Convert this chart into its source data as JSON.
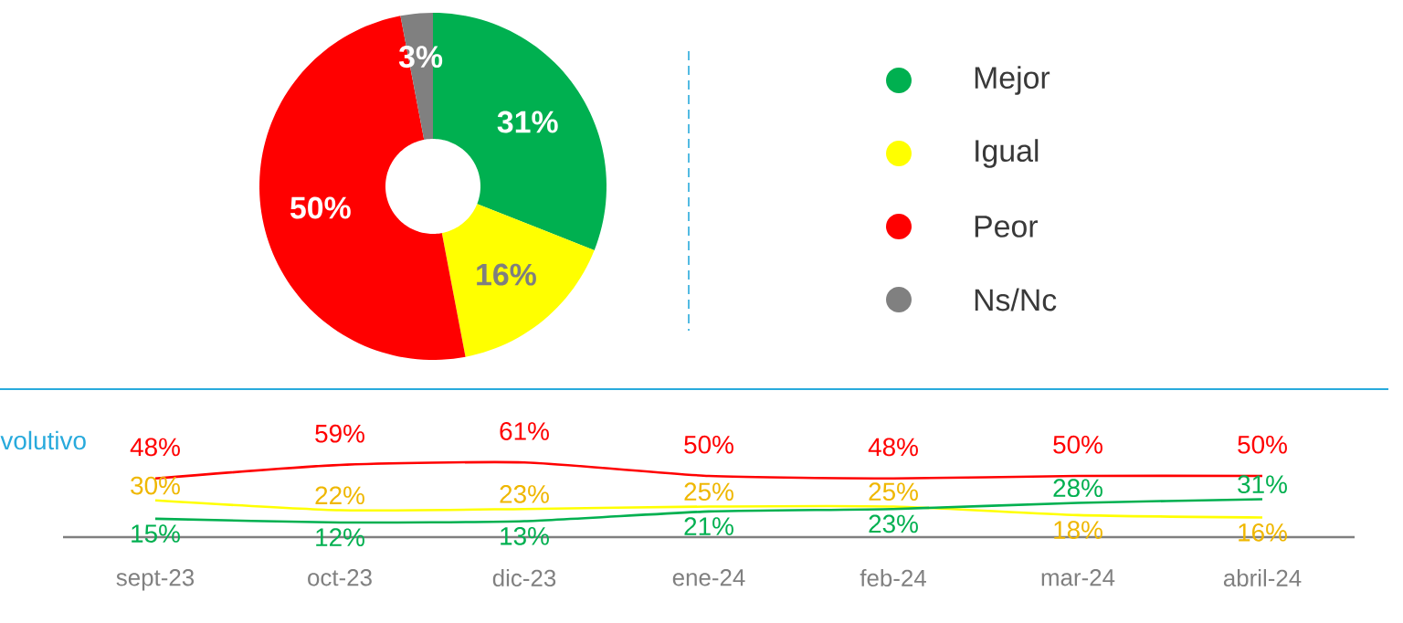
{
  "chart_data": [
    {
      "type": "donut",
      "categories": [
        "Mejor",
        "Igual",
        "Peor",
        "Ns/Nc"
      ],
      "values": [
        31,
        16,
        50,
        3
      ],
      "value_labels": [
        "31%",
        "16%",
        "50%",
        "3%"
      ],
      "colors": [
        "#00b050",
        "#ffff00",
        "#ff0000",
        "#808080"
      ],
      "legend": "right"
    },
    {
      "type": "line",
      "categories": [
        "sept-23",
        "oct-23",
        "dic-23",
        "ene-24",
        "feb-24",
        "mar-24",
        "abril-24"
      ],
      "series": [
        {
          "color": "#ff0000",
          "values": [
            48,
            59,
            61,
            50,
            48,
            50,
            50
          ],
          "value_labels": [
            "48%",
            "59%",
            "61%",
            "50%",
            "48%",
            "50%",
            "50%"
          ]
        },
        {
          "color": "#ffff00",
          "values": [
            30,
            22,
            23,
            25,
            25,
            18,
            16
          ],
          "value_labels": [
            "30%",
            "22%",
            "23%",
            "25%",
            "25%",
            "18%",
            "16%"
          ]
        },
        {
          "color": "#00b050",
          "values": [
            15,
            12,
            13,
            21,
            23,
            28,
            31
          ],
          "value_labels": [
            "15%",
            "12%",
            "13%",
            "21%",
            "23%",
            "28%",
            "31%"
          ]
        }
      ],
      "grid": false,
      "annotations": [
        "volutivo"
      ]
    }
  ]
}
